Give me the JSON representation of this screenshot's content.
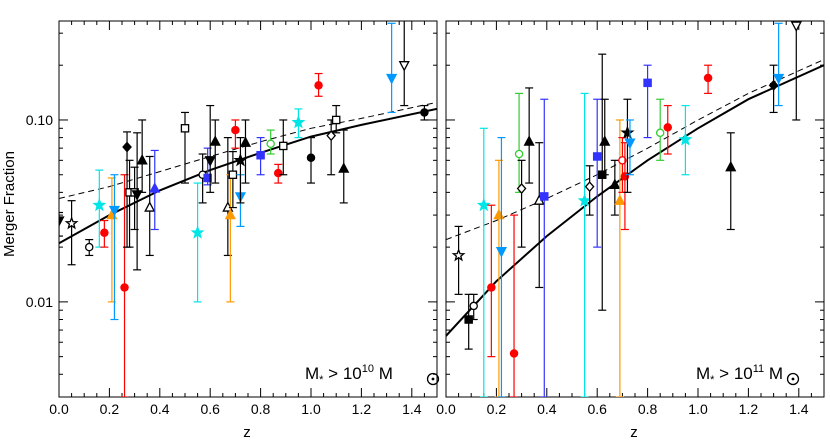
{
  "figure": {
    "ylabel": "Merger Fraction",
    "xlabel": "z"
  },
  "chart_data": [
    {
      "type": "scatter",
      "panel": "left",
      "label_main": "M",
      "label_sub1": "*",
      "label_rel": " > 10",
      "label_exp": "10",
      "label_unit": " M",
      "xlim": [
        0.0,
        1.5
      ],
      "ylim": [
        0.003,
        0.35
      ],
      "yscale": "log",
      "xticks": [
        0.0,
        0.2,
        0.4,
        0.6,
        0.8,
        1.0,
        1.2,
        1.4
      ],
      "xtick_labels": [
        "0.0",
        "0.2",
        "0.4",
        "0.6",
        "0.8",
        "1.0",
        "1.2",
        "1.4"
      ],
      "yticks": [
        0.01,
        0.1
      ],
      "ytick_labels": [
        "0.01",
        "0.10"
      ],
      "fit_solid": {
        "x": [
          0.0,
          0.2,
          0.4,
          0.6,
          0.8,
          1.0,
          1.2,
          1.5
        ],
        "y": [
          0.021,
          0.03,
          0.041,
          0.053,
          0.066,
          0.081,
          0.094,
          0.115
        ]
      },
      "fit_dashed": {
        "x": [
          0.0,
          0.2,
          0.4,
          0.6,
          0.8,
          1.0,
          1.2,
          1.5
        ],
        "y": [
          0.037,
          0.043,
          0.052,
          0.063,
          0.076,
          0.09,
          0.102,
          0.125
        ]
      },
      "points": [
        {
          "x": 0.0,
          "y": 0.028,
          "lo": 0.023,
          "hi": 0.031,
          "m": "tri-down",
          "c": "#000000",
          "f": true
        },
        {
          "x": 0.05,
          "y": 0.027,
          "lo": 0.016,
          "hi": 0.036,
          "m": "star",
          "c": "#000000",
          "f": false
        },
        {
          "x": 0.12,
          "y": 0.02,
          "lo": 0.018,
          "hi": 0.022,
          "m": "circle",
          "c": "#000000",
          "f": false
        },
        {
          "x": 0.16,
          "y": 0.034,
          "lo": 0.02,
          "hi": 0.053,
          "m": "star",
          "c": "#00e5e5",
          "f": true
        },
        {
          "x": 0.18,
          "y": 0.024,
          "lo": 0.02,
          "hi": 0.028,
          "m": "circle",
          "c": "#ff0000",
          "f": true
        },
        {
          "x": 0.21,
          "y": 0.03,
          "lo": 0.01,
          "hi": 0.048,
          "m": "tri-up",
          "c": "#ff9900",
          "f": true
        },
        {
          "x": 0.22,
          "y": 0.032,
          "lo": 0.008,
          "hi": 0.05,
          "m": "tri-down",
          "c": "#0099ff",
          "f": true
        },
        {
          "x": 0.26,
          "y": 0.012,
          "lo": 0.003,
          "hi": 0.05,
          "m": "circle",
          "c": "#ff0000",
          "f": true
        },
        {
          "x": 0.27,
          "y": 0.071,
          "lo": 0.02,
          "hi": 0.086,
          "m": "diamond",
          "c": "#000000",
          "f": true
        },
        {
          "x": 0.28,
          "y": 0.04,
          "lo": 0.02,
          "hi": 0.06,
          "m": "square",
          "c": "#000000",
          "f": false
        },
        {
          "x": 0.3,
          "y": 0.04,
          "lo": 0.025,
          "hi": 0.055,
          "m": "square",
          "c": "#000000",
          "f": false
        },
        {
          "x": 0.31,
          "y": 0.039,
          "lo": 0.015,
          "hi": 0.085,
          "m": "tri-down",
          "c": "#000000",
          "f": true
        },
        {
          "x": 0.33,
          "y": 0.06,
          "lo": 0.04,
          "hi": 0.1,
          "m": "tri-up",
          "c": "#000000",
          "f": true
        },
        {
          "x": 0.36,
          "y": 0.033,
          "lo": 0.018,
          "hi": 0.063,
          "m": "tri-up",
          "c": "#000000",
          "f": false
        },
        {
          "x": 0.38,
          "y": 0.042,
          "lo": 0.025,
          "hi": 0.068,
          "m": "tri-up",
          "c": "#3333ff",
          "f": true
        },
        {
          "x": 0.5,
          "y": 0.09,
          "lo": 0.045,
          "hi": 0.11,
          "m": "square",
          "c": "#000000",
          "f": false
        },
        {
          "x": 0.55,
          "y": 0.024,
          "lo": 0.01,
          "hi": 0.045,
          "m": "star",
          "c": "#00e5e5",
          "f": true
        },
        {
          "x": 0.57,
          "y": 0.05,
          "lo": 0.035,
          "hi": 0.065,
          "m": "circle",
          "c": "#000000",
          "f": false
        },
        {
          "x": 0.59,
          "y": 0.048,
          "lo": 0.044,
          "hi": 0.07,
          "m": "square",
          "c": "#3333ff",
          "f": true
        },
        {
          "x": 0.6,
          "y": 0.06,
          "lo": 0.04,
          "hi": 0.12,
          "m": "tri-down",
          "c": "#000000",
          "f": true
        },
        {
          "x": 0.62,
          "y": 0.076,
          "lo": 0.045,
          "hi": 0.1,
          "m": "tri-up",
          "c": "#000000",
          "f": true
        },
        {
          "x": 0.67,
          "y": 0.033,
          "lo": 0.018,
          "hi": 0.08,
          "m": "tri-up",
          "c": "#000000",
          "f": false
        },
        {
          "x": 0.68,
          "y": 0.03,
          "lo": 0.01,
          "hi": 0.05,
          "m": "tri-up",
          "c": "#ff9900",
          "f": true
        },
        {
          "x": 0.69,
          "y": 0.05,
          "lo": 0.033,
          "hi": 0.067,
          "m": "square",
          "c": "#000000",
          "f": false
        },
        {
          "x": 0.7,
          "y": 0.088,
          "lo": 0.07,
          "hi": 0.1,
          "m": "circle",
          "c": "#ff0000",
          "f": true
        },
        {
          "x": 0.72,
          "y": 0.038,
          "lo": 0.026,
          "hi": 0.05,
          "m": "tri-down",
          "c": "#0099ff",
          "f": true
        },
        {
          "x": 0.72,
          "y": 0.06,
          "lo": 0.035,
          "hi": 0.08,
          "m": "star",
          "c": "#000000",
          "f": true
        },
        {
          "x": 0.74,
          "y": 0.075,
          "lo": 0.045,
          "hi": 0.1,
          "m": "tri-up",
          "c": "#000000",
          "f": true
        },
        {
          "x": 0.8,
          "y": 0.064,
          "lo": 0.05,
          "hi": 0.08,
          "m": "square",
          "c": "#3333ff",
          "f": true
        },
        {
          "x": 0.84,
          "y": 0.074,
          "lo": 0.065,
          "hi": 0.088,
          "m": "circle",
          "c": "#33cc33",
          "f": false
        },
        {
          "x": 0.87,
          "y": 0.051,
          "lo": 0.045,
          "hi": 0.057,
          "m": "circle",
          "c": "#ff0000",
          "f": true
        },
        {
          "x": 0.89,
          "y": 0.072,
          "lo": 0.05,
          "hi": 0.1,
          "m": "square",
          "c": "#000000",
          "f": false
        },
        {
          "x": 0.95,
          "y": 0.097,
          "lo": 0.08,
          "hi": 0.115,
          "m": "star",
          "c": "#00e5e5",
          "f": true
        },
        {
          "x": 1.0,
          "y": 0.062,
          "lo": 0.045,
          "hi": 0.08,
          "m": "circle",
          "c": "#000000",
          "f": true
        },
        {
          "x": 1.03,
          "y": 0.155,
          "lo": 0.135,
          "hi": 0.18,
          "m": "circle",
          "c": "#ff0000",
          "f": true
        },
        {
          "x": 1.08,
          "y": 0.082,
          "lo": 0.05,
          "hi": 0.1,
          "m": "diamond",
          "c": "#000000",
          "f": false
        },
        {
          "x": 1.1,
          "y": 0.1,
          "lo": 0.085,
          "hi": 0.12,
          "m": "square",
          "c": "#000000",
          "f": false
        },
        {
          "x": 1.13,
          "y": 0.054,
          "lo": 0.035,
          "hi": 0.088,
          "m": "tri-up",
          "c": "#000000",
          "f": true
        },
        {
          "x": 1.32,
          "y": 0.17,
          "lo": 0.11,
          "hi": 0.34,
          "m": "tri-down",
          "c": "#0099ff",
          "f": true
        },
        {
          "x": 1.37,
          "y": 0.2,
          "lo": 0.12,
          "hi": 0.36,
          "m": "tri-down",
          "c": "#000000",
          "f": false
        },
        {
          "x": 1.45,
          "y": 0.11,
          "lo": 0.1,
          "hi": 0.12,
          "m": "circle",
          "c": "#000000",
          "f": true
        }
      ]
    },
    {
      "type": "scatter",
      "panel": "right",
      "label_main": "M",
      "label_sub1": "*",
      "label_rel": " > 10",
      "label_exp": "11",
      "label_unit": " M",
      "xlim": [
        0.0,
        1.5
      ],
      "ylim": [
        0.003,
        0.35
      ],
      "yscale": "log",
      "xticks": [
        0.0,
        0.2,
        0.4,
        0.6,
        0.8,
        1.0,
        1.2,
        1.4
      ],
      "xtick_labels": [
        "0.0",
        "0.2",
        "0.4",
        "0.6",
        "0.8",
        "1.0",
        "1.2",
        "1.4"
      ],
      "yticks": [
        0.01,
        0.1
      ],
      "fit_solid": {
        "x": [
          0.0,
          0.2,
          0.4,
          0.6,
          0.8,
          1.0,
          1.2,
          1.5
        ],
        "y": [
          0.0065,
          0.013,
          0.023,
          0.038,
          0.06,
          0.09,
          0.13,
          0.2
        ]
      },
      "fit_dashed": {
        "x": [
          0.0,
          0.2,
          0.4,
          0.6,
          0.8,
          1.0,
          1.2,
          1.5
        ],
        "y": [
          0.022,
          0.028,
          0.037,
          0.05,
          0.07,
          0.1,
          0.14,
          0.215
        ]
      },
      "points": [
        {
          "x": 0.05,
          "y": 0.018,
          "lo": 0.011,
          "hi": 0.026,
          "m": "star",
          "c": "#000000",
          "f": false
        },
        {
          "x": 0.09,
          "y": 0.008,
          "lo": 0.0055,
          "hi": 0.011,
          "m": "square",
          "c": "#000000",
          "f": true
        },
        {
          "x": 0.11,
          "y": 0.0095,
          "lo": 0.008,
          "hi": 0.011,
          "m": "circle",
          "c": "#000000",
          "f": false
        },
        {
          "x": 0.15,
          "y": 0.034,
          "lo": 0.003,
          "hi": 0.09,
          "m": "star",
          "c": "#00e5e5",
          "f": true
        },
        {
          "x": 0.18,
          "y": 0.012,
          "lo": 0.005,
          "hi": 0.034,
          "m": "circle",
          "c": "#ff0000",
          "f": true
        },
        {
          "x": 0.21,
          "y": 0.03,
          "lo": 0.003,
          "hi": 0.06,
          "m": "tri-up",
          "c": "#ff9900",
          "f": true
        },
        {
          "x": 0.22,
          "y": 0.019,
          "lo": 0.003,
          "hi": 0.08,
          "m": "tri-down",
          "c": "#0099ff",
          "f": true
        },
        {
          "x": 0.27,
          "y": 0.0052,
          "lo": 0.003,
          "hi": 0.03,
          "m": "circle",
          "c": "#ff0000",
          "f": true
        },
        {
          "x": 0.29,
          "y": 0.065,
          "lo": 0.04,
          "hi": 0.14,
          "m": "circle",
          "c": "#33cc33",
          "f": false
        },
        {
          "x": 0.3,
          "y": 0.042,
          "lo": 0.02,
          "hi": 0.06,
          "m": "diamond",
          "c": "#000000",
          "f": false
        },
        {
          "x": 0.33,
          "y": 0.076,
          "lo": 0.045,
          "hi": 0.15,
          "m": "tri-up",
          "c": "#000000",
          "f": true
        },
        {
          "x": 0.37,
          "y": 0.036,
          "lo": 0.012,
          "hi": 0.075,
          "m": "tri-up",
          "c": "#000000",
          "f": false
        },
        {
          "x": 0.39,
          "y": 0.038,
          "lo": 0.003,
          "hi": 0.13,
          "m": "square",
          "c": "#3333ff",
          "f": true
        },
        {
          "x": 0.55,
          "y": 0.036,
          "lo": 0.003,
          "hi": 0.14,
          "m": "star",
          "c": "#00e5e5",
          "f": true
        },
        {
          "x": 0.57,
          "y": 0.043,
          "lo": 0.03,
          "hi": 0.056,
          "m": "diamond",
          "c": "#000000",
          "f": false
        },
        {
          "x": 0.6,
          "y": 0.063,
          "lo": 0.02,
          "hi": 0.13,
          "m": "square",
          "c": "#3333ff",
          "f": true
        },
        {
          "x": 0.62,
          "y": 0.05,
          "lo": 0.009,
          "hi": 0.23,
          "m": "square",
          "c": "#000000",
          "f": true
        },
        {
          "x": 0.63,
          "y": 0.076,
          "lo": 0.05,
          "hi": 0.13,
          "m": "tri-up",
          "c": "#000000",
          "f": true
        },
        {
          "x": 0.67,
          "y": 0.044,
          "lo": 0.03,
          "hi": 0.06,
          "m": "tri-up",
          "c": "#000000",
          "f": true
        },
        {
          "x": 0.69,
          "y": 0.036,
          "lo": 0.003,
          "hi": 0.1,
          "m": "tri-up",
          "c": "#ff9900",
          "f": true
        },
        {
          "x": 0.7,
          "y": 0.06,
          "lo": 0.04,
          "hi": 0.08,
          "m": "circle",
          "c": "#ff0000",
          "f": false
        },
        {
          "x": 0.71,
          "y": 0.049,
          "lo": 0.025,
          "hi": 0.075,
          "m": "circle",
          "c": "#ff0000",
          "f": true
        },
        {
          "x": 0.72,
          "y": 0.085,
          "lo": 0.04,
          "hi": 0.13,
          "m": "star",
          "c": "#000000",
          "f": true
        },
        {
          "x": 0.73,
          "y": 0.075,
          "lo": 0.05,
          "hi": 0.1,
          "m": "tri-down",
          "c": "#0099ff",
          "f": true
        },
        {
          "x": 0.8,
          "y": 0.16,
          "lo": 0.08,
          "hi": 0.2,
          "m": "square",
          "c": "#3333ff",
          "f": true
        },
        {
          "x": 0.85,
          "y": 0.085,
          "lo": 0.06,
          "hi": 0.13,
          "m": "circle",
          "c": "#33cc33",
          "f": false
        },
        {
          "x": 0.88,
          "y": 0.091,
          "lo": 0.065,
          "hi": 0.12,
          "m": "circle",
          "c": "#ff0000",
          "f": true
        },
        {
          "x": 0.95,
          "y": 0.078,
          "lo": 0.05,
          "hi": 0.12,
          "m": "star",
          "c": "#00e5e5",
          "f": true
        },
        {
          "x": 1.04,
          "y": 0.17,
          "lo": 0.14,
          "hi": 0.2,
          "m": "circle",
          "c": "#ff0000",
          "f": true
        },
        {
          "x": 1.13,
          "y": 0.055,
          "lo": 0.025,
          "hi": 0.085,
          "m": "tri-up",
          "c": "#000000",
          "f": true
        },
        {
          "x": 1.3,
          "y": 0.155,
          "lo": 0.11,
          "hi": 0.2,
          "m": "diamond",
          "c": "#000000",
          "f": true
        },
        {
          "x": 1.32,
          "y": 0.17,
          "lo": 0.12,
          "hi": 0.34,
          "m": "tri-down",
          "c": "#0099ff",
          "f": true
        },
        {
          "x": 1.39,
          "y": 0.33,
          "lo": 0.1,
          "hi": 0.35,
          "m": "tri-down",
          "c": "#000000",
          "f": false
        }
      ]
    }
  ]
}
